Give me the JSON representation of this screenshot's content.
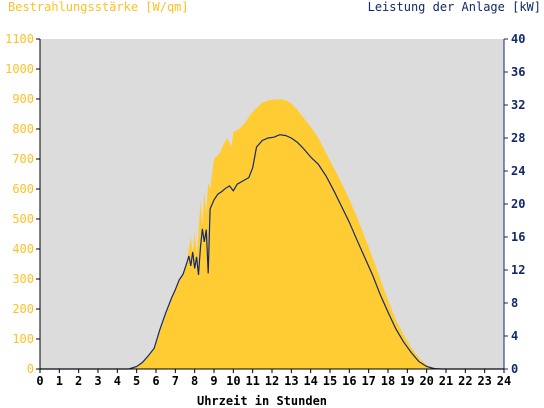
{
  "chart_data": {
    "type": "area",
    "title_left": "Bestrahlungsstärke [W/qm]",
    "title_right": "Leistung der Anlage [kW]",
    "xlabel": "Uhrzeit in Stunden",
    "xlim": [
      0,
      24
    ],
    "x_ticks": [
      "0",
      "1",
      "2",
      "3",
      "4",
      "5",
      "6",
      "7",
      "8",
      "9",
      "10",
      "11",
      "12",
      "13",
      "14",
      "15",
      "16",
      "17",
      "18",
      "19",
      "20",
      "21",
      "22",
      "23",
      "24"
    ],
    "y_left": {
      "lim": [
        0,
        1100
      ],
      "ticks": [
        "0",
        "100",
        "200",
        "300",
        "400",
        "500",
        "600",
        "700",
        "800",
        "900",
        "1000",
        "1100"
      ],
      "color": "#ffc125"
    },
    "y_right": {
      "lim": [
        0,
        40
      ],
      "ticks": [
        "0",
        "4",
        "8",
        "12",
        "16",
        "20",
        "24",
        "28",
        "32",
        "36",
        "40"
      ],
      "color": "#13296b"
    },
    "grid": false,
    "plot_background": "#dcdcdc",
    "series": [
      {
        "axis": "left",
        "style": "area",
        "color": "#ffcc33",
        "points": [
          [
            0,
            0
          ],
          [
            4.5,
            0
          ],
          [
            5.0,
            8
          ],
          [
            5.3,
            20
          ],
          [
            5.6,
            45
          ],
          [
            5.9,
            70
          ],
          [
            6.2,
            130
          ],
          [
            6.5,
            190
          ],
          [
            6.8,
            240
          ],
          [
            7.0,
            270
          ],
          [
            7.2,
            300
          ],
          [
            7.4,
            320
          ],
          [
            7.6,
            360
          ],
          [
            7.7,
            400
          ],
          [
            7.8,
            440
          ],
          [
            7.9,
            390
          ],
          [
            8.0,
            460
          ],
          [
            8.1,
            380
          ],
          [
            8.2,
            450
          ],
          [
            8.3,
            560
          ],
          [
            8.4,
            480
          ],
          [
            8.5,
            590
          ],
          [
            8.6,
            520
          ],
          [
            8.7,
            620
          ],
          [
            8.8,
            600
          ],
          [
            9.0,
            700
          ],
          [
            9.3,
            720
          ],
          [
            9.5,
            750
          ],
          [
            9.7,
            770
          ],
          [
            9.9,
            740
          ],
          [
            10.0,
            790
          ],
          [
            10.3,
            800
          ],
          [
            10.6,
            820
          ],
          [
            10.9,
            850
          ],
          [
            11.2,
            870
          ],
          [
            11.5,
            888
          ],
          [
            11.8,
            896
          ],
          [
            12.1,
            898
          ],
          [
            12.5,
            899
          ],
          [
            12.8,
            893
          ],
          [
            13.0,
            885
          ],
          [
            13.3,
            865
          ],
          [
            13.6,
            840
          ],
          [
            14.0,
            808
          ],
          [
            14.4,
            770
          ],
          [
            14.8,
            720
          ],
          [
            15.2,
            670
          ],
          [
            15.6,
            620
          ],
          [
            16.0,
            565
          ],
          [
            16.4,
            505
          ],
          [
            16.8,
            440
          ],
          [
            17.2,
            372
          ],
          [
            17.6,
            300
          ],
          [
            18.0,
            230
          ],
          [
            18.4,
            165
          ],
          [
            18.8,
            115
          ],
          [
            19.2,
            72
          ],
          [
            19.6,
            38
          ],
          [
            20.0,
            12
          ],
          [
            20.4,
            3
          ],
          [
            20.8,
            0
          ],
          [
            24,
            0
          ]
        ]
      },
      {
        "axis": "right",
        "style": "line",
        "color": "#13296b",
        "points": [
          [
            0,
            0
          ],
          [
            4.6,
            0
          ],
          [
            5.0,
            0.3
          ],
          [
            5.3,
            0.8
          ],
          [
            5.6,
            1.6
          ],
          [
            5.9,
            2.5
          ],
          [
            6.2,
            4.8
          ],
          [
            6.5,
            6.8
          ],
          [
            6.8,
            8.6
          ],
          [
            7.0,
            9.6
          ],
          [
            7.2,
            10.8
          ],
          [
            7.4,
            11.5
          ],
          [
            7.6,
            12.9
          ],
          [
            7.7,
            13.7
          ],
          [
            7.8,
            12.5
          ],
          [
            7.9,
            14.2
          ],
          [
            8.0,
            12.2
          ],
          [
            8.1,
            13.6
          ],
          [
            8.2,
            11.4
          ],
          [
            8.3,
            14.8
          ],
          [
            8.4,
            17.0
          ],
          [
            8.5,
            15.4
          ],
          [
            8.6,
            16.9
          ],
          [
            8.7,
            11.6
          ],
          [
            8.8,
            19.4
          ],
          [
            9.0,
            20.5
          ],
          [
            9.2,
            21.2
          ],
          [
            9.4,
            21.5
          ],
          [
            9.6,
            21.9
          ],
          [
            9.8,
            22.2
          ],
          [
            10.0,
            21.6
          ],
          [
            10.2,
            22.4
          ],
          [
            10.5,
            22.8
          ],
          [
            10.8,
            23.2
          ],
          [
            11.0,
            24.4
          ],
          [
            11.2,
            26.9
          ],
          [
            11.5,
            27.7
          ],
          [
            11.8,
            28.0
          ],
          [
            12.1,
            28.1
          ],
          [
            12.4,
            28.4
          ],
          [
            12.7,
            28.3
          ],
          [
            13.0,
            28.0
          ],
          [
            13.3,
            27.5
          ],
          [
            13.6,
            26.8
          ],
          [
            14.0,
            25.7
          ],
          [
            14.4,
            24.8
          ],
          [
            14.8,
            23.4
          ],
          [
            15.2,
            21.6
          ],
          [
            15.6,
            19.7
          ],
          [
            16.0,
            17.8
          ],
          [
            16.4,
            15.6
          ],
          [
            16.8,
            13.5
          ],
          [
            17.2,
            11.4
          ],
          [
            17.6,
            9.0
          ],
          [
            18.0,
            6.9
          ],
          [
            18.4,
            4.9
          ],
          [
            18.8,
            3.3
          ],
          [
            19.2,
            2.0
          ],
          [
            19.6,
            0.9
          ],
          [
            20.0,
            0.3
          ],
          [
            20.4,
            0.05
          ],
          [
            20.8,
            0
          ],
          [
            24,
            0
          ]
        ]
      }
    ]
  }
}
